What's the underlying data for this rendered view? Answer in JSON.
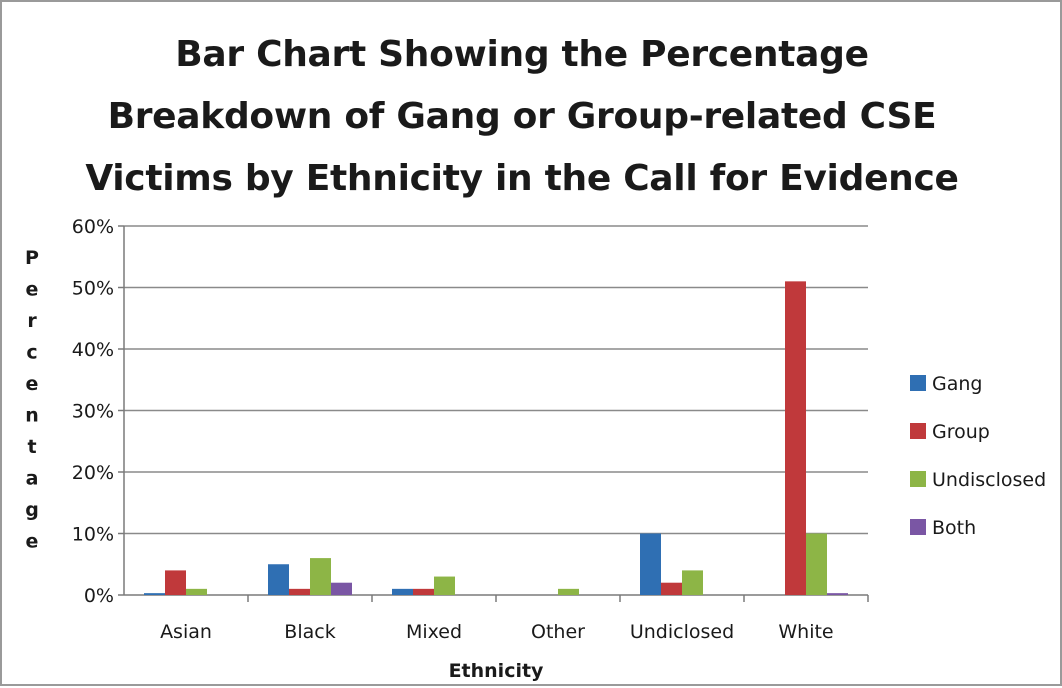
{
  "chart_data": {
    "type": "bar",
    "title_lines": [
      "Bar Chart Showing the Percentage",
      "Breakdown of Gang or Group-related CSE",
      "Victims by Ethnicity in the Call for Evidence"
    ],
    "xlabel": "Ethnicity",
    "ylabel": "Percentage",
    "categories": [
      "Asian",
      "Black",
      "Mixed",
      "Other",
      "Undiclosed",
      "White"
    ],
    "ylim": [
      0,
      60
    ],
    "yticks": [
      "0%",
      "10%",
      "20%",
      "30%",
      "40%",
      "50%",
      "60%"
    ],
    "y_unit": "%",
    "grid": true,
    "legend_position": "right",
    "series": [
      {
        "name": "Gang",
        "color": "#2f6fb3",
        "values": [
          0.3,
          5,
          1,
          0,
          10,
          0
        ]
      },
      {
        "name": "Group",
        "color": "#c0393b",
        "values": [
          4,
          1,
          1,
          0,
          2,
          51
        ]
      },
      {
        "name": "Undisclosed",
        "color": "#8db546",
        "values": [
          1,
          6,
          3,
          1,
          4,
          10
        ]
      },
      {
        "name": "Both",
        "color": "#7a56a4",
        "values": [
          0,
          2,
          0,
          0,
          0,
          0.3
        ]
      }
    ]
  }
}
